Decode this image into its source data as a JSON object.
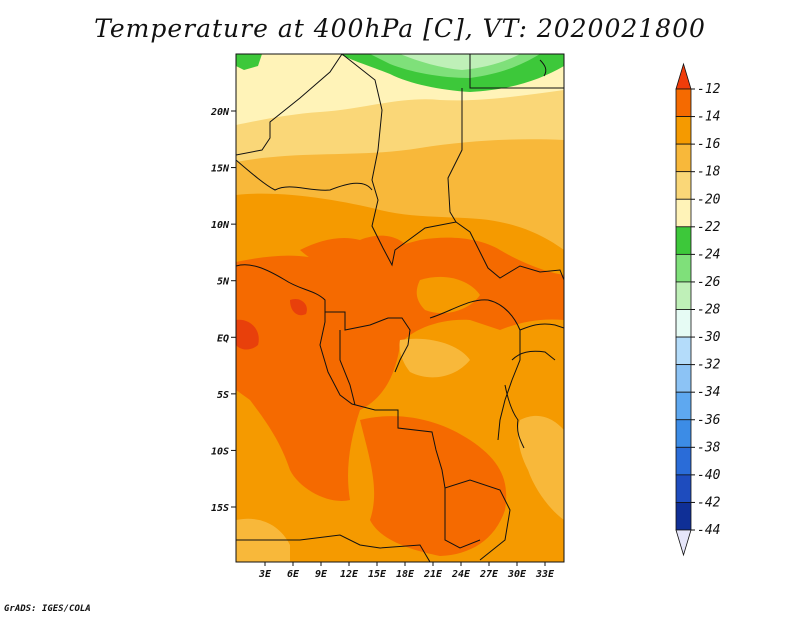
{
  "title": "Temperature at 400hPa [C], VT: 2020021800",
  "credit": "GrADS: IGES/COLA",
  "colors": {
    "c_gt_-12": "#e8400b",
    "c_-12_-14": "#f56a00",
    "c_-14_-16": "#f59a00",
    "c_-16_-18": "#f8b83a",
    "c_-18_-20": "#fad778",
    "c_-20_-22": "#fff3b8",
    "c_-22_-24": "#3dc83a",
    "c_-24_-26": "#7fe07a",
    "c_-26_-28": "#bff0b8",
    "c_-28_-30": "#e6fbf4",
    "border": "#111111"
  },
  "chart_data": {
    "type": "heatmap",
    "title": "Temperature at 400hPa [C], VT: 2020021800",
    "variable": "Temperature",
    "level": "400hPa",
    "units": "C",
    "valid_time": "2020021800",
    "lon_ticks": [
      "3E",
      "6E",
      "9E",
      "12E",
      "15E",
      "18E",
      "21E",
      "24E",
      "27E",
      "30E",
      "33E"
    ],
    "lat_ticks": [
      "20N",
      "15N",
      "10N",
      "5N",
      "EQ",
      "5S",
      "10S",
      "15S"
    ],
    "lon_range": [
      0,
      35
    ],
    "lat_range": [
      -20,
      25
    ],
    "colorbar": {
      "levels": [
        "-12",
        "-14",
        "-16",
        "-18",
        "-20",
        "-22",
        "-24",
        "-26",
        "-28",
        "-30",
        "-32",
        "-34",
        "-36",
        "-38",
        "-40",
        "-42",
        "-44"
      ],
      "colors": [
        "#f03c0a",
        "#f56a00",
        "#f59a00",
        "#f8b83a",
        "#fad778",
        "#fff3b8",
        "#3dc83a",
        "#7fe07a",
        "#bff0b8",
        "#e6fbf4",
        "#b4dcfa",
        "#8cc3f5",
        "#5ea8f0",
        "#3c8ce6",
        "#2a6cd8",
        "#1e4cbe",
        "#0f2f96",
        "#0a146e"
      ],
      "top_arrow_color": "#f03c0a",
      "bottom_arrow_color": "#e6e6fa"
    }
  }
}
